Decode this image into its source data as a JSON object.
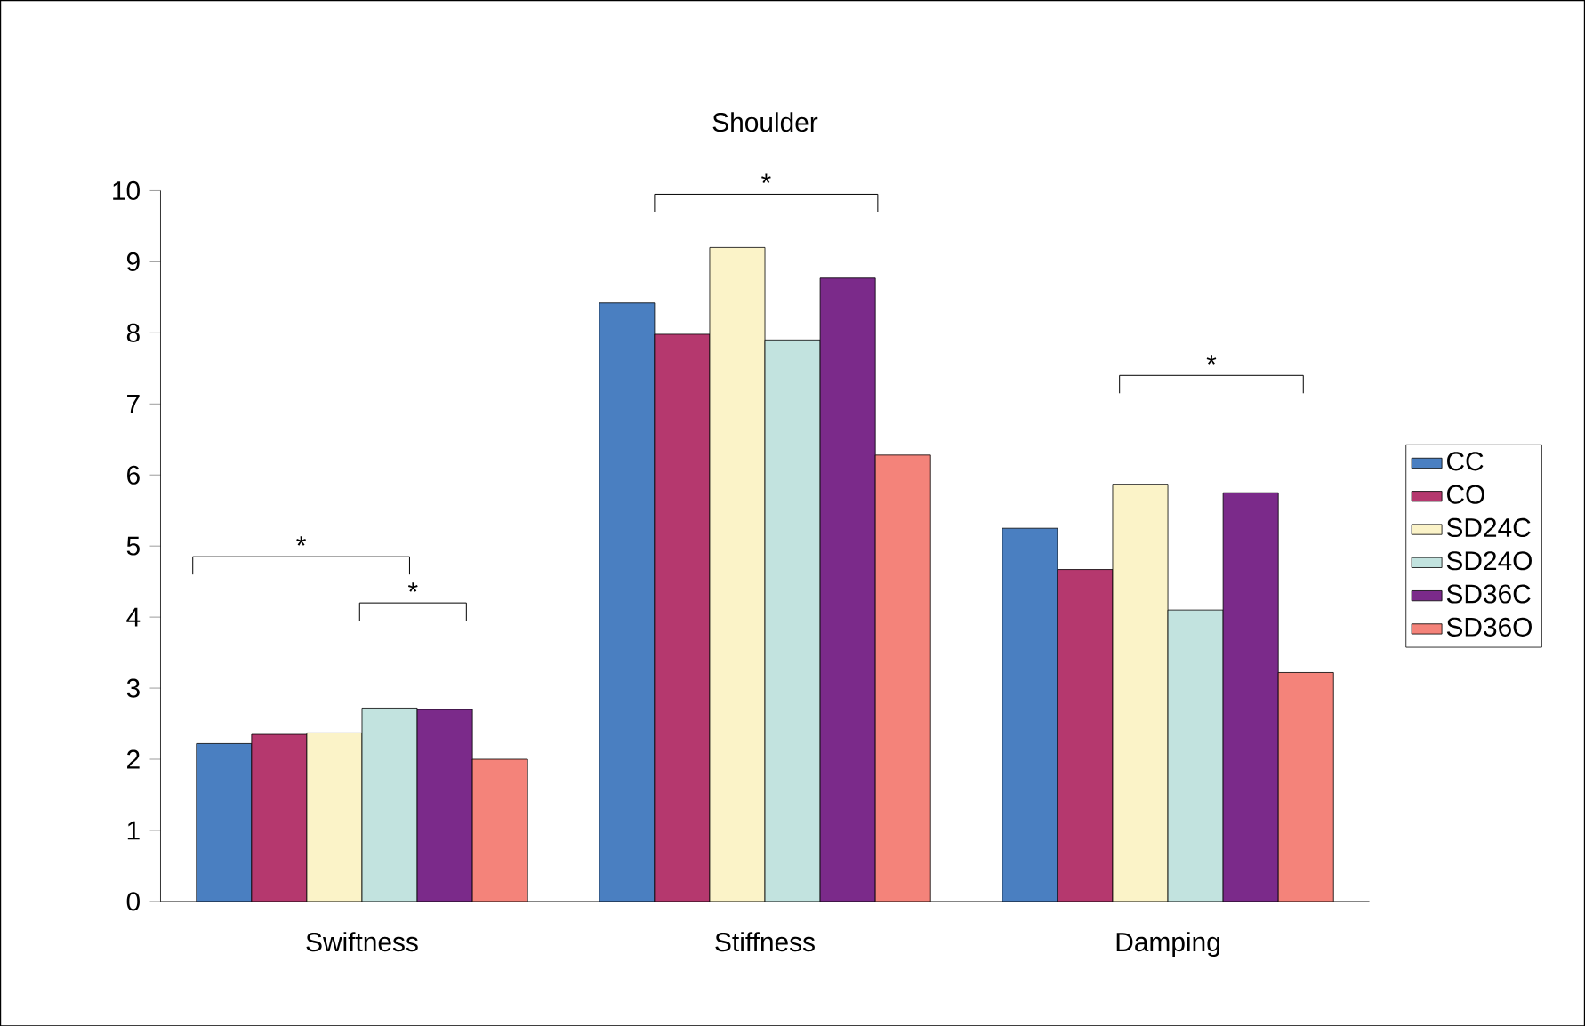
{
  "chart_data": {
    "type": "bar",
    "title": "Shoulder",
    "categories": [
      "Swiftness",
      "Stiffness",
      "Damping"
    ],
    "series": [
      {
        "name": "CC",
        "color": "#4a7fc1",
        "values": [
          2.22,
          8.42,
          5.25
        ]
      },
      {
        "name": "CO",
        "color": "#b5386e",
        "values": [
          2.35,
          7.98,
          4.67
        ]
      },
      {
        "name": "SD24C",
        "color": "#fbf3c8",
        "values": [
          2.37,
          9.2,
          5.87
        ]
      },
      {
        "name": "SD24O",
        "color": "#c2e3df",
        "values": [
          2.72,
          7.9,
          4.1
        ]
      },
      {
        "name": "SD36C",
        "color": "#7b2a8a",
        "values": [
          2.7,
          8.77,
          5.75
        ]
      },
      {
        "name": "SD36O",
        "color": "#f4837a",
        "values": [
          2.0,
          6.28,
          3.22
        ]
      }
    ],
    "ylim": [
      0,
      10
    ],
    "yticks": [
      0,
      1,
      2,
      3,
      4,
      5,
      6,
      7,
      8,
      9,
      10
    ],
    "legend": "right",
    "annotations": [
      "*",
      "*",
      "*",
      "*"
    ]
  }
}
